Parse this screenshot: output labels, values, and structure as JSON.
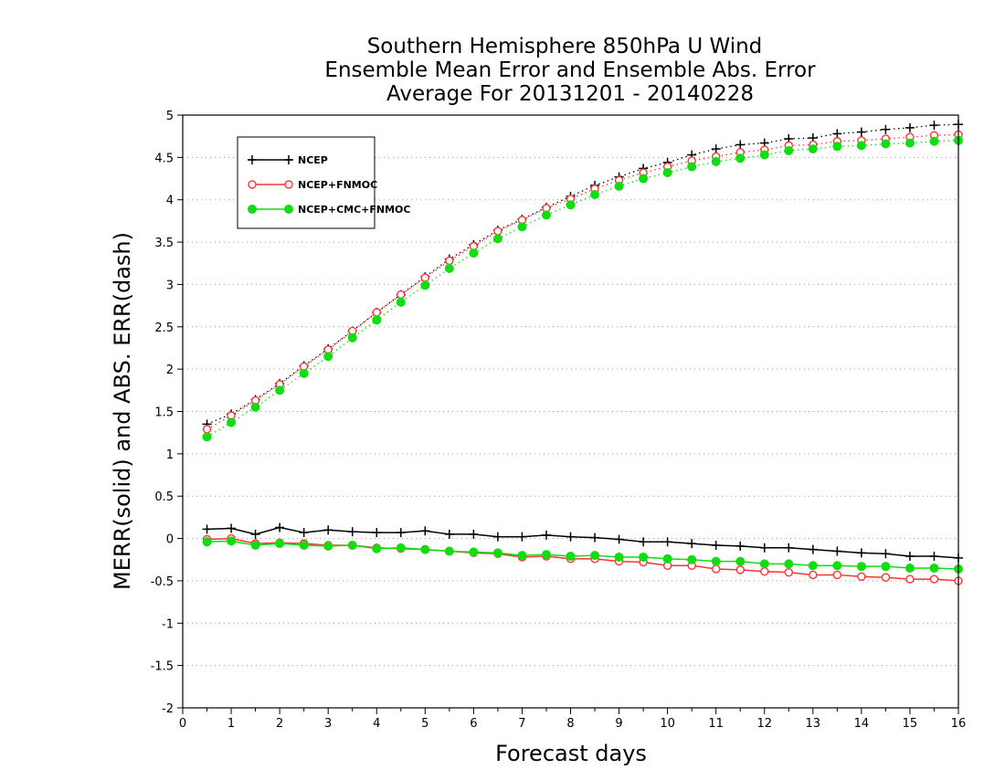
{
  "chart_data": {
    "type": "line",
    "title": [
      "Southern Hemisphere 850hPa U Wind",
      "Ensemble Mean Error and Ensemble Abs. Error",
      "Average For 20131201 - 20140228"
    ],
    "xlabel": "Forecast days",
    "ylabel": "MERR(solid) and ABS. ERR(dash)",
    "xlim": [
      0,
      16
    ],
    "ylim": [
      -2,
      5
    ],
    "xticks": [
      0,
      1,
      2,
      3,
      4,
      5,
      6,
      7,
      8,
      9,
      10,
      11,
      12,
      13,
      14,
      15,
      16
    ],
    "yticks": [
      -2,
      -1.5,
      -1,
      -0.5,
      0,
      0.5,
      1,
      1.5,
      2,
      2.5,
      3,
      3.5,
      4,
      4.5,
      5
    ],
    "ytick_labels": [
      "-2",
      "-1.5",
      "-1",
      "-0.5",
      "0",
      "0.5",
      "1",
      "1.5",
      "2",
      "2.5",
      "3",
      "3.5",
      "4",
      "4.5",
      "5"
    ],
    "grid": "horizontal dotted",
    "legend_position": "top-left",
    "x": [
      0.5,
      1,
      1.5,
      2,
      2.5,
      3,
      3.5,
      4,
      4.5,
      5,
      5.5,
      6,
      6.5,
      7,
      7.5,
      8,
      8.5,
      9,
      9.5,
      10,
      10.5,
      11,
      11.5,
      12,
      12.5,
      13,
      13.5,
      14,
      14.5,
      15,
      15.5,
      16
    ],
    "series": [
      {
        "name": "NCEP",
        "color": "#000000",
        "marker": "plus",
        "mean_error": [
          0.11,
          0.12,
          0.05,
          0.13,
          0.07,
          0.1,
          0.08,
          0.07,
          0.07,
          0.09,
          0.05,
          0.05,
          0.02,
          0.02,
          0.04,
          0.02,
          0.01,
          -0.01,
          -0.04,
          -0.04,
          -0.06,
          -0.08,
          -0.09,
          -0.11,
          -0.11,
          -0.13,
          -0.15,
          -0.17,
          -0.18,
          -0.21,
          -0.21,
          -0.23
        ],
        "abs_error": [
          1.35,
          1.47,
          1.64,
          1.83,
          2.04,
          2.24,
          2.45,
          2.67,
          2.88,
          3.09,
          3.3,
          3.47,
          3.64,
          3.77,
          3.91,
          4.04,
          4.17,
          4.27,
          4.37,
          4.44,
          4.53,
          4.6,
          4.65,
          4.67,
          4.72,
          4.73,
          4.78,
          4.8,
          4.83,
          4.85,
          4.88,
          4.89
        ]
      },
      {
        "name": "NCEP+FNMOC",
        "color": "#ff3333",
        "marker": "open-circle",
        "mean_error": [
          -0.01,
          0.0,
          -0.06,
          -0.05,
          -0.06,
          -0.08,
          -0.08,
          -0.11,
          -0.12,
          -0.13,
          -0.15,
          -0.17,
          -0.18,
          -0.22,
          -0.21,
          -0.24,
          -0.24,
          -0.27,
          -0.28,
          -0.32,
          -0.32,
          -0.36,
          -0.37,
          -0.39,
          -0.4,
          -0.43,
          -0.43,
          -0.45,
          -0.46,
          -0.48,
          -0.48,
          -0.5
        ],
        "abs_error": [
          1.29,
          1.45,
          1.63,
          1.82,
          2.03,
          2.23,
          2.45,
          2.67,
          2.88,
          3.08,
          3.28,
          3.45,
          3.63,
          3.76,
          3.9,
          4.01,
          4.13,
          4.23,
          4.32,
          4.39,
          4.46,
          4.51,
          4.56,
          4.59,
          4.64,
          4.65,
          4.69,
          4.7,
          4.72,
          4.74,
          4.76,
          4.77
        ]
      },
      {
        "name": "NCEP+CMC+FNMOC",
        "color": "#11dd11",
        "marker": "filled-circle",
        "mean_error": [
          -0.04,
          -0.03,
          -0.08,
          -0.06,
          -0.08,
          -0.09,
          -0.08,
          -0.12,
          -0.11,
          -0.13,
          -0.15,
          -0.16,
          -0.17,
          -0.2,
          -0.19,
          -0.21,
          -0.2,
          -0.22,
          -0.22,
          -0.24,
          -0.25,
          -0.27,
          -0.27,
          -0.3,
          -0.3,
          -0.32,
          -0.32,
          -0.33,
          -0.33,
          -0.35,
          -0.35,
          -0.36
        ],
        "abs_error": [
          1.2,
          1.37,
          1.55,
          1.75,
          1.95,
          2.15,
          2.37,
          2.58,
          2.79,
          2.99,
          3.19,
          3.37,
          3.54,
          3.68,
          3.82,
          3.94,
          4.06,
          4.16,
          4.25,
          4.32,
          4.39,
          4.45,
          4.49,
          4.53,
          4.58,
          4.6,
          4.63,
          4.64,
          4.66,
          4.67,
          4.69,
          4.7
        ]
      }
    ]
  }
}
